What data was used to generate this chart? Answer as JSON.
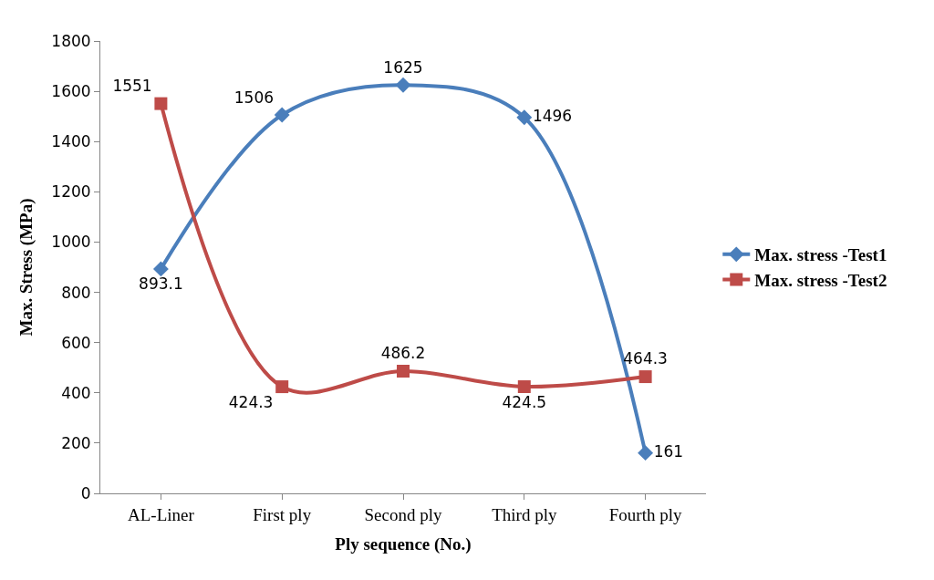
{
  "chart_data": {
    "type": "line",
    "xlabel": "Ply sequence (No.)",
    "ylabel": "Max. Stress (MPa)",
    "categories": [
      "AL-Liner",
      "First ply",
      "Second ply",
      "Third ply",
      "Fourth ply"
    ],
    "series": [
      {
        "name": "Max. stress -Test1",
        "color": "#4a7ebb",
        "marker": "diamond",
        "values": [
          893.1,
          1506,
          1625,
          1496,
          161
        ]
      },
      {
        "name": "Max. stress -Test2",
        "color": "#be4b48",
        "marker": "square",
        "values": [
          1551,
          424.3,
          486.2,
          424.5,
          464.3
        ]
      }
    ],
    "ylim": [
      0,
      1800
    ],
    "yticks": [
      0,
      200,
      400,
      600,
      800,
      1000,
      1200,
      1400,
      1600,
      1800
    ],
    "legend": "right",
    "data_labels": true,
    "line_style": "solid"
  }
}
